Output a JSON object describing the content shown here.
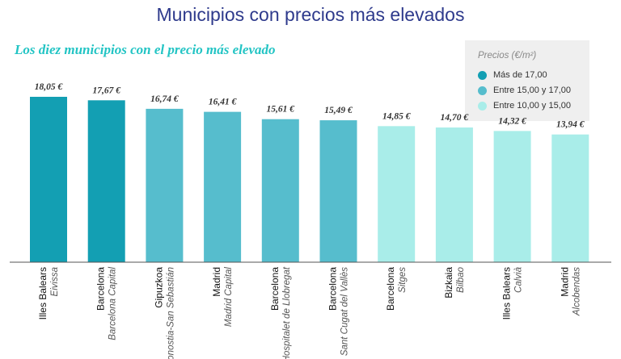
{
  "title": "Municipios con precios más elevados",
  "subtitle": "Los diez municipios con el precio más elevado",
  "legend": {
    "title": "Precios (€/m²)",
    "items": [
      {
        "label": "Más de 17,00",
        "color": "#139fb3"
      },
      {
        "label": "Entre 15,00 y 17,00",
        "color": "#56bdcd"
      },
      {
        "label": "Entre 10,00 y 15,00",
        "color": "#a9ede9"
      }
    ]
  },
  "chart_data": {
    "type": "bar",
    "title": "Los diez municipios con el precio más elevado",
    "categories": [
      {
        "province": "Illes Balears",
        "city": "Eivissa"
      },
      {
        "province": "Barcelona",
        "city": "Barcelona Capital"
      },
      {
        "province": "Gipuzkoa",
        "city": "Donostia-San Sebastián"
      },
      {
        "province": "Madrid",
        "city": "Madrid Capital"
      },
      {
        "province": "Barcelona",
        "city": "L'Hospitalet de Llobregat"
      },
      {
        "province": "Barcelona",
        "city": "Sant Cugat del Vallès"
      },
      {
        "province": "Barcelona",
        "city": "Sitges"
      },
      {
        "province": "Bizkaia",
        "city": "Bilbao"
      },
      {
        "province": "Illes Balears",
        "city": "Calvià"
      },
      {
        "province": "Madrid",
        "city": "Alcobendas"
      }
    ],
    "values": [
      18.05,
      17.67,
      16.74,
      16.41,
      15.61,
      15.49,
      14.85,
      14.7,
      14.32,
      13.94
    ],
    "value_labels": [
      "18,05 €",
      "17,67 €",
      "16,74 €",
      "16,41 €",
      "15,61 €",
      "15,49 €",
      "14,85 €",
      "14,70 €",
      "14,32 €",
      "13,94 €"
    ],
    "color_groups": [
      0,
      0,
      1,
      1,
      1,
      1,
      2,
      2,
      2,
      2
    ],
    "ylim": [
      0,
      18.05
    ],
    "grid": false,
    "legend_position": "top-right"
  }
}
